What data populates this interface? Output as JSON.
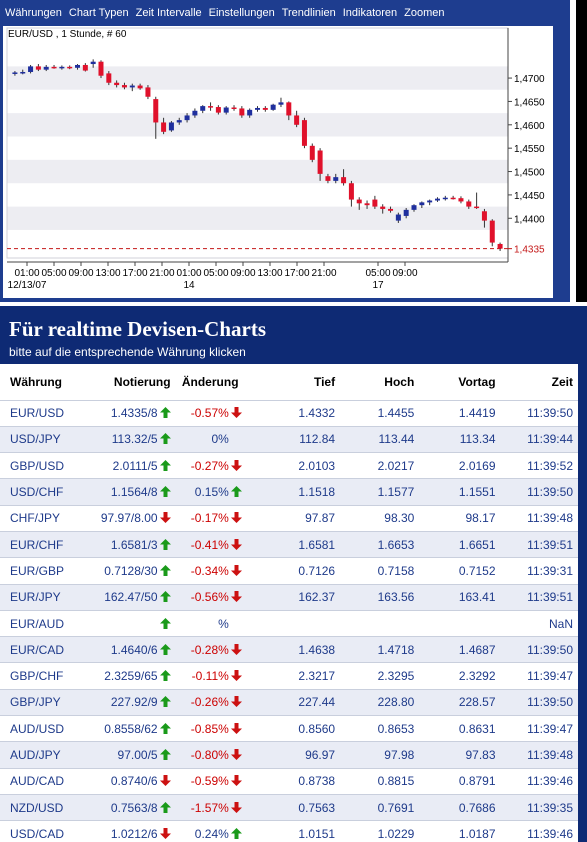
{
  "menu": [
    "Währungen",
    "Chart Typen",
    "Zeit Intervalle",
    "Einstellungen",
    "Trendlinien",
    "Indikatoren",
    "Zoomen"
  ],
  "chart_data": {
    "type": "candlestick",
    "title": "EUR/USD , 1 Stunde, # 60",
    "y_ticks": [
      "1,4700",
      "1,4650",
      "1,4600",
      "1,4550",
      "1,4500",
      "1,4450",
      "1,4400"
    ],
    "current_price_label": "1,4335",
    "current_price": 1.4335,
    "ylim": [
      1.4315,
      1.479
    ],
    "x_tick_labels": [
      "01:00",
      "05:00",
      "09:00",
      "13:00",
      "17:00",
      "21:00",
      "01:00",
      "05:00",
      "09:00",
      "13:00",
      "17:00",
      "21:00",
      "05:00",
      "09:00"
    ],
    "date_labels": [
      {
        "text": "12/13/07",
        "at_tick": 0
      },
      {
        "text": "14",
        "at_tick": 6
      },
      {
        "text": "17",
        "at_tick": 12
      }
    ],
    "colors": {
      "up": "#1f2f9e",
      "down": "#e0112b",
      "price_line": "#c41818",
      "band": "#ededf2"
    },
    "candles": [
      {
        "o": 1.471,
        "h": 1.4715,
        "l": 1.4705,
        "c": 1.4712
      },
      {
        "o": 1.4712,
        "h": 1.4718,
        "l": 1.4708,
        "c": 1.4713
      },
      {
        "o": 1.4713,
        "h": 1.4728,
        "l": 1.471,
        "c": 1.4725
      },
      {
        "o": 1.4725,
        "h": 1.473,
        "l": 1.4715,
        "c": 1.4718
      },
      {
        "o": 1.4718,
        "h": 1.4728,
        "l": 1.4715,
        "c": 1.4724
      },
      {
        "o": 1.4724,
        "h": 1.4728,
        "l": 1.472,
        "c": 1.4722
      },
      {
        "o": 1.4722,
        "h": 1.4727,
        "l": 1.4718,
        "c": 1.4724
      },
      {
        "o": 1.4724,
        "h": 1.4727,
        "l": 1.4719,
        "c": 1.4722
      },
      {
        "o": 1.4722,
        "h": 1.473,
        "l": 1.4718,
        "c": 1.4728
      },
      {
        "o": 1.4728,
        "h": 1.4732,
        "l": 1.4714,
        "c": 1.4716
      },
      {
        "o": 1.473,
        "h": 1.474,
        "l": 1.4722,
        "c": 1.4735
      },
      {
        "o": 1.4735,
        "h": 1.4738,
        "l": 1.47,
        "c": 1.4705
      },
      {
        "o": 1.471,
        "h": 1.4715,
        "l": 1.4685,
        "c": 1.469
      },
      {
        "o": 1.469,
        "h": 1.4695,
        "l": 1.468,
        "c": 1.4685
      },
      {
        "o": 1.4685,
        "h": 1.469,
        "l": 1.4676,
        "c": 1.468
      },
      {
        "o": 1.468,
        "h": 1.4688,
        "l": 1.4672,
        "c": 1.4684
      },
      {
        "o": 1.4684,
        "h": 1.4688,
        "l": 1.4675,
        "c": 1.4678
      },
      {
        "o": 1.468,
        "h": 1.4685,
        "l": 1.4655,
        "c": 1.466
      },
      {
        "o": 1.4655,
        "h": 1.466,
        "l": 1.457,
        "c": 1.4605
      },
      {
        "o": 1.4605,
        "h": 1.4615,
        "l": 1.458,
        "c": 1.4585
      },
      {
        "o": 1.4588,
        "h": 1.4608,
        "l": 1.4585,
        "c": 1.4605
      },
      {
        "o": 1.4605,
        "h": 1.4615,
        "l": 1.46,
        "c": 1.461
      },
      {
        "o": 1.461,
        "h": 1.4625,
        "l": 1.4605,
        "c": 1.462
      },
      {
        "o": 1.462,
        "h": 1.4635,
        "l": 1.4615,
        "c": 1.463
      },
      {
        "o": 1.463,
        "h": 1.4642,
        "l": 1.4625,
        "c": 1.464
      },
      {
        "o": 1.464,
        "h": 1.4648,
        "l": 1.463,
        "c": 1.4638
      },
      {
        "o": 1.4638,
        "h": 1.4642,
        "l": 1.4622,
        "c": 1.4626
      },
      {
        "o": 1.4626,
        "h": 1.464,
        "l": 1.4622,
        "c": 1.4637
      },
      {
        "o": 1.4637,
        "h": 1.4642,
        "l": 1.463,
        "c": 1.4635
      },
      {
        "o": 1.4635,
        "h": 1.464,
        "l": 1.4615,
        "c": 1.462
      },
      {
        "o": 1.462,
        "h": 1.4635,
        "l": 1.4615,
        "c": 1.4632
      },
      {
        "o": 1.4632,
        "h": 1.464,
        "l": 1.4628,
        "c": 1.4636
      },
      {
        "o": 1.4636,
        "h": 1.464,
        "l": 1.4628,
        "c": 1.4632
      },
      {
        "o": 1.4632,
        "h": 1.4645,
        "l": 1.463,
        "c": 1.4643
      },
      {
        "o": 1.4643,
        "h": 1.4658,
        "l": 1.4638,
        "c": 1.4648
      },
      {
        "o": 1.4648,
        "h": 1.465,
        "l": 1.461,
        "c": 1.462
      },
      {
        "o": 1.462,
        "h": 1.463,
        "l": 1.4595,
        "c": 1.46
      },
      {
        "o": 1.461,
        "h": 1.4615,
        "l": 1.455,
        "c": 1.4555
      },
      {
        "o": 1.4555,
        "h": 1.456,
        "l": 1.452,
        "c": 1.4525
      },
      {
        "o": 1.4545,
        "h": 1.455,
        "l": 1.448,
        "c": 1.4495
      },
      {
        "o": 1.449,
        "h": 1.4495,
        "l": 1.4475,
        "c": 1.448
      },
      {
        "o": 1.448,
        "h": 1.4495,
        "l": 1.4475,
        "c": 1.4488
      },
      {
        "o": 1.4488,
        "h": 1.4505,
        "l": 1.447,
        "c": 1.4475
      },
      {
        "o": 1.4475,
        "h": 1.448,
        "l": 1.4425,
        "c": 1.444
      },
      {
        "o": 1.444,
        "h": 1.4445,
        "l": 1.4418,
        "c": 1.4432
      },
      {
        "o": 1.4432,
        "h": 1.4438,
        "l": 1.442,
        "c": 1.4428
      },
      {
        "o": 1.444,
        "h": 1.4448,
        "l": 1.442,
        "c": 1.4425
      },
      {
        "o": 1.4425,
        "h": 1.443,
        "l": 1.441,
        "c": 1.442
      },
      {
        "o": 1.442,
        "h": 1.4425,
        "l": 1.4412,
        "c": 1.4416
      },
      {
        "o": 1.4395,
        "h": 1.4412,
        "l": 1.439,
        "c": 1.4408
      },
      {
        "o": 1.4405,
        "h": 1.4422,
        "l": 1.44,
        "c": 1.4418
      },
      {
        "o": 1.4418,
        "h": 1.443,
        "l": 1.4414,
        "c": 1.4428
      },
      {
        "o": 1.4428,
        "h": 1.4436,
        "l": 1.4422,
        "c": 1.4434
      },
      {
        "o": 1.4434,
        "h": 1.444,
        "l": 1.4428,
        "c": 1.4438
      },
      {
        "o": 1.4438,
        "h": 1.4445,
        "l": 1.4435,
        "c": 1.4442
      },
      {
        "o": 1.4442,
        "h": 1.4448,
        "l": 1.4438,
        "c": 1.4444
      },
      {
        "o": 1.4444,
        "h": 1.4448,
        "l": 1.444,
        "c": 1.4443
      },
      {
        "o": 1.4443,
        "h": 1.4447,
        "l": 1.4432,
        "c": 1.4436
      },
      {
        "o": 1.4436,
        "h": 1.444,
        "l": 1.442,
        "c": 1.4425
      },
      {
        "o": 1.4425,
        "h": 1.4455,
        "l": 1.442,
        "c": 1.4422
      },
      {
        "o": 1.4415,
        "h": 1.442,
        "l": 1.438,
        "c": 1.4395
      },
      {
        "o": 1.4395,
        "h": 1.4398,
        "l": 1.434,
        "c": 1.4348
      },
      {
        "o": 1.4345,
        "h": 1.4348,
        "l": 1.433,
        "c": 1.4335
      }
    ]
  },
  "banner": {
    "title": "Für realtime Devisen-Charts",
    "subtitle": "bitte auf die entsprechende Währung klicken"
  },
  "table": {
    "headers": {
      "pair": "Währung",
      "quote": "Notierung",
      "change": "Änderung",
      "low": "Tief",
      "high": "Hoch",
      "prev": "Vortag",
      "time": "Zeit"
    },
    "rows": [
      {
        "pair": "EUR/USD",
        "quote": "1.4335/8",
        "quote_dir": "up",
        "change": "-0.57%",
        "change_dir": "down",
        "low": "1.4332",
        "high": "1.4455",
        "prev": "1.4419",
        "time": "11:39:50"
      },
      {
        "pair": "USD/JPY",
        "quote": "113.32/5",
        "quote_dir": "up",
        "change": "0%",
        "change_dir": "none",
        "low": "112.84",
        "high": "113.44",
        "prev": "113.34",
        "time": "11:39:44"
      },
      {
        "pair": "GBP/USD",
        "quote": "2.0111/5",
        "quote_dir": "up",
        "change": "-0.27%",
        "change_dir": "down",
        "low": "2.0103",
        "high": "2.0217",
        "prev": "2.0169",
        "time": "11:39:52"
      },
      {
        "pair": "USD/CHF",
        "quote": "1.1564/8",
        "quote_dir": "up",
        "change": "0.15%",
        "change_dir": "up",
        "low": "1.1518",
        "high": "1.1577",
        "prev": "1.1551",
        "time": "11:39:50"
      },
      {
        "pair": "CHF/JPY",
        "quote": "97.97/8.00",
        "quote_dir": "down",
        "change": "-0.17%",
        "change_dir": "down",
        "low": "97.87",
        "high": "98.30",
        "prev": "98.17",
        "time": "11:39:48"
      },
      {
        "pair": "EUR/CHF",
        "quote": "1.6581/3",
        "quote_dir": "up",
        "change": "-0.41%",
        "change_dir": "down",
        "low": "1.6581",
        "high": "1.6653",
        "prev": "1.6651",
        "time": "11:39:51"
      },
      {
        "pair": "EUR/GBP",
        "quote": "0.7128/30",
        "quote_dir": "up",
        "change": "-0.34%",
        "change_dir": "down",
        "low": "0.7126",
        "high": "0.7158",
        "prev": "0.7152",
        "time": "11:39:31"
      },
      {
        "pair": "EUR/JPY",
        "quote": "162.47/50",
        "quote_dir": "up",
        "change": "-0.56%",
        "change_dir": "down",
        "low": "162.37",
        "high": "163.56",
        "prev": "163.41",
        "time": "11:39:51"
      },
      {
        "pair": "EUR/AUD",
        "quote": "",
        "quote_dir": "up",
        "change": "%",
        "change_dir": "none",
        "low": "",
        "high": "",
        "prev": "",
        "time": "NaN"
      },
      {
        "pair": "EUR/CAD",
        "quote": "1.4640/6",
        "quote_dir": "up",
        "change": "-0.28%",
        "change_dir": "down",
        "low": "1.4638",
        "high": "1.4718",
        "prev": "1.4687",
        "time": "11:39:50"
      },
      {
        "pair": "GBP/CHF",
        "quote": "2.3259/65",
        "quote_dir": "up",
        "change": "-0.11%",
        "change_dir": "down",
        "low": "2.3217",
        "high": "2.3295",
        "prev": "2.3292",
        "time": "11:39:47"
      },
      {
        "pair": "GBP/JPY",
        "quote": "227.92/9",
        "quote_dir": "up",
        "change": "-0.26%",
        "change_dir": "down",
        "low": "227.44",
        "high": "228.80",
        "prev": "228.57",
        "time": "11:39:50"
      },
      {
        "pair": "AUD/USD",
        "quote": "0.8558/62",
        "quote_dir": "up",
        "change": "-0.85%",
        "change_dir": "down",
        "low": "0.8560",
        "high": "0.8653",
        "prev": "0.8631",
        "time": "11:39:47"
      },
      {
        "pair": "AUD/JPY",
        "quote": "97.00/5",
        "quote_dir": "up",
        "change": "-0.80%",
        "change_dir": "down",
        "low": "96.97",
        "high": "97.98",
        "prev": "97.83",
        "time": "11:39:48"
      },
      {
        "pair": "AUD/CAD",
        "quote": "0.8740/6",
        "quote_dir": "down",
        "change": "-0.59%",
        "change_dir": "down",
        "low": "0.8738",
        "high": "0.8815",
        "prev": "0.8791",
        "time": "11:39:46"
      },
      {
        "pair": "NZD/USD",
        "quote": "0.7563/8",
        "quote_dir": "up",
        "change": "-1.57%",
        "change_dir": "down",
        "low": "0.7563",
        "high": "0.7691",
        "prev": "0.7686",
        "time": "11:39:35"
      },
      {
        "pair": "USD/CAD",
        "quote": "1.0212/6",
        "quote_dir": "down",
        "change": "0.24%",
        "change_dir": "up",
        "low": "1.0151",
        "high": "1.0229",
        "prev": "1.0187",
        "time": "11:39:46"
      }
    ]
  },
  "arrow_colors": {
    "up": "#1a9a1a",
    "down": "#cc1111"
  }
}
